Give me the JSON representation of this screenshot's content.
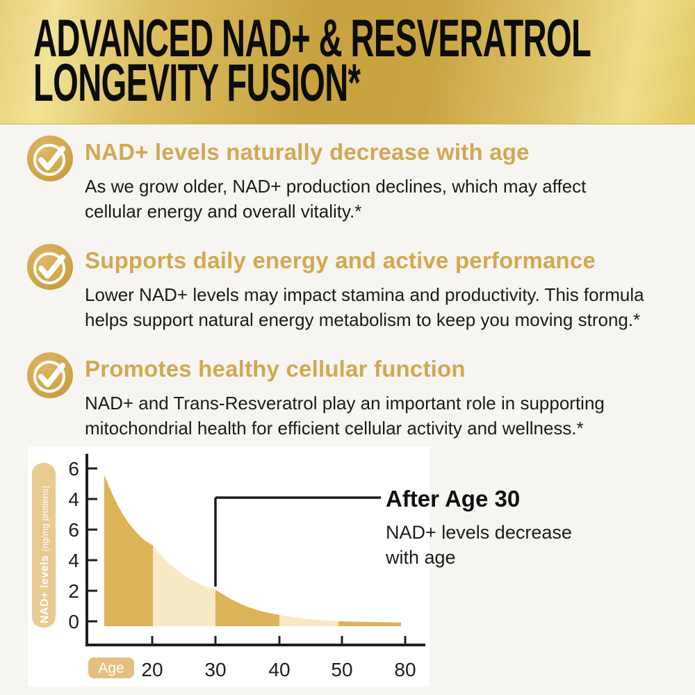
{
  "page": {
    "background": "#f6f5f2"
  },
  "header": {
    "line1": "ADVANCED NAD+ & RESVERATROL",
    "line2": "LONGEVITY FUSION*",
    "text_color": "#0c0c0c"
  },
  "benefits": [
    {
      "heading": "NAD+ levels naturally decrease with age",
      "body_lines": [
        "As we grow older, NAD+ production declines, which may affect",
        "cellular energy and overall vitality.*"
      ]
    },
    {
      "heading": "Supports daily energy and active performance",
      "body_lines": [
        "Lower NAD+ levels may impact stamina and productivity. This formula",
        "helps support natural energy metabolism to keep you moving strong.*"
      ]
    },
    {
      "heading": "Promotes healthy cellular function",
      "body_lines": [
        "NAD+ and Trans-Resveratrol play an important role in supporting",
        "mitochondrial health for efficient cellular activity and wellness.*"
      ]
    }
  ],
  "colors": {
    "accent_gold": "#d2a851",
    "header_black": "#0c0c0c",
    "body_text": "#1b1b1b",
    "page_bg": "#f6f5f2",
    "panel_bg": "#ffffff"
  },
  "chart_data": {
    "type": "area",
    "title": "",
    "ylabel_main": "NAD+ levels",
    "ylabel_unit": "(ng/mg protiens)",
    "xlabel_badge": "Age",
    "x_tick_labels": [
      "20",
      "30",
      "40",
      "50",
      "80"
    ],
    "y_tick_labels_top_to_bottom": [
      "6",
      "4",
      "6",
      "4",
      "2",
      "0"
    ],
    "curve_points_age_value": [
      [
        15,
        6.0
      ],
      [
        20,
        3.2
      ],
      [
        30,
        1.46
      ],
      [
        40,
        0.45
      ],
      [
        50,
        0.2
      ],
      [
        80,
        0.15
      ]
    ],
    "segments": [
      {
        "from_age": 15,
        "to_age": 20,
        "tone": "dark"
      },
      {
        "from_age": 20,
        "to_age": 30,
        "tone": "cream"
      },
      {
        "from_age": 30,
        "to_age": 40,
        "tone": "dark"
      },
      {
        "from_age": 40,
        "to_age": 50,
        "tone": "cream"
      },
      {
        "from_age": 50,
        "to_age": 80,
        "tone": "dark"
      }
    ],
    "annotation": {
      "title": "After Age 30",
      "lines": [
        "NAD+ levels decrease",
        "with age"
      ],
      "at_age": 30
    },
    "colors": {
      "dark": "#dcb457",
      "cream": "#f8e9c5",
      "axis": "#1f1f1f",
      "label_pill": "#e8ca92",
      "age_pill": "#e5bf7f",
      "annotation_line": "#1b1b1b"
    },
    "grid": false,
    "legend": null
  }
}
